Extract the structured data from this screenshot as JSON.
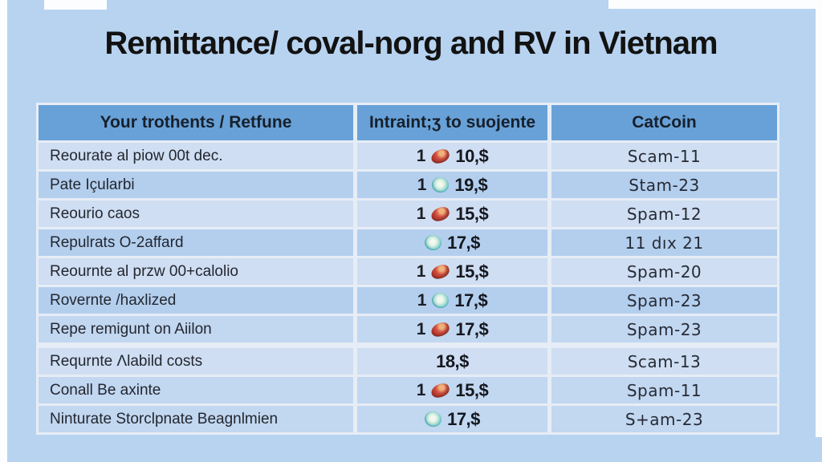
{
  "title": "Remittance/ coval-norg and RV in Vietnam",
  "colors": {
    "background": "#b7d3f0",
    "header_blue": "#68a1d8",
    "row_light": "#cfdef2",
    "row_dark": "#b4cfee",
    "red_icon": "#c0392b",
    "teal_icon": "#3aa8bd",
    "title_text": "#121212"
  },
  "table": {
    "headers": [
      "Your trothents / Retfune",
      "Intraint;ʒ to suojente",
      "CatCoin"
    ],
    "rows": [
      {
        "label": "Reourate al piow 00t dec.",
        "qty": "1",
        "icon": "red-gem-icon",
        "amount": "10,$",
        "catcoin": "Scam-11",
        "shade": "light"
      },
      {
        "label": "Pate Içularbi",
        "qty": "1",
        "icon": "teal-swirl-icon",
        "amount": "19,$",
        "catcoin": "Stam-23",
        "shade": "dark"
      },
      {
        "label": "Reourio caos",
        "qty": "1",
        "icon": "red-gem-icon",
        "amount": "15,$",
        "catcoin": "Spam-12",
        "shade": "light"
      },
      {
        "label": "Repulrats O-2affard",
        "qty": "",
        "icon": "teal-swirl-icon",
        "amount": "17,$",
        "catcoin": "11 dıx 21",
        "shade": "dark"
      },
      {
        "label": "Reournte al przw 00+calolio",
        "qty": "1",
        "icon": "red-gem-icon",
        "amount": "15,$",
        "catcoin": "Spam-20",
        "shade": "light"
      },
      {
        "label": "Rovernte /haxlized",
        "qty": "1",
        "icon": "teal-swirl-icon",
        "amount": "17,$",
        "catcoin": "Spam-23",
        "shade": "dark"
      },
      {
        "label": "Repe remigunt on Aiilon",
        "qty": "1",
        "icon": "red-gem-icon",
        "amount": "17,$",
        "catcoin": "Spam-23",
        "shade": "mid"
      },
      {
        "label": "Requrnte Λlabild costs",
        "qty": "",
        "icon": "",
        "amount": "18,$",
        "catcoin": "Scam-13",
        "shade": "light",
        "section_start": true
      },
      {
        "label": "Conall Be axinte",
        "qty": "1",
        "icon": "red-gem-icon",
        "amount": "15,$",
        "catcoin": "Spam-11",
        "shade": "mid"
      },
      {
        "label": "Ninturate Storclpnate Beagnlmien",
        "qty": "",
        "icon": "teal-swirl-icon",
        "amount": "17,$",
        "catcoin": "S+am-23",
        "shade": "mid"
      }
    ]
  },
  "chart_data": {
    "type": "table",
    "title": "Remittance/ coval-norg and RV in Vietnam",
    "columns": [
      "Your trothents / Retfune",
      "Intraint;ʒ to suojente",
      "CatCoin"
    ],
    "rows": [
      [
        "Reourate al piow 00t dec.",
        "1 [red-gem] 10,$",
        "Scam-11"
      ],
      [
        "Pate Içularbi",
        "1 [teal-swirl] 19,$",
        "Stam-23"
      ],
      [
        "Reourio caos",
        "1 [red-gem] 15,$",
        "Spam-12"
      ],
      [
        "Repulrats O-2affard",
        "[teal-swirl] 17,$",
        "11 dıx 21"
      ],
      [
        "Reournte al przw 00+calolio",
        "1 [red-gem] 15,$",
        "Spam-20"
      ],
      [
        "Rovernte /haxlized",
        "1 [teal-swirl] 17,$",
        "Spam-23"
      ],
      [
        "Repe remigunt on Aiilon",
        "1 [red-gem] 17,$",
        "Spam-23"
      ],
      [
        "Requrnte Λlabild costs",
        "18,$",
        "Scam-13"
      ],
      [
        "Conall Be axinte",
        "1 [red-gem] 15,$",
        "Spam-11"
      ],
      [
        "Ninturate Storclpnate Beagnlmien",
        "[teal-swirl] 17,$",
        "S+am-23"
      ]
    ],
    "layout": {
      "header_fill": "#68a1d8",
      "body_fills": [
        "#cfdef2",
        "#b4cfee"
      ],
      "section_break_after_row": 7
    }
  }
}
